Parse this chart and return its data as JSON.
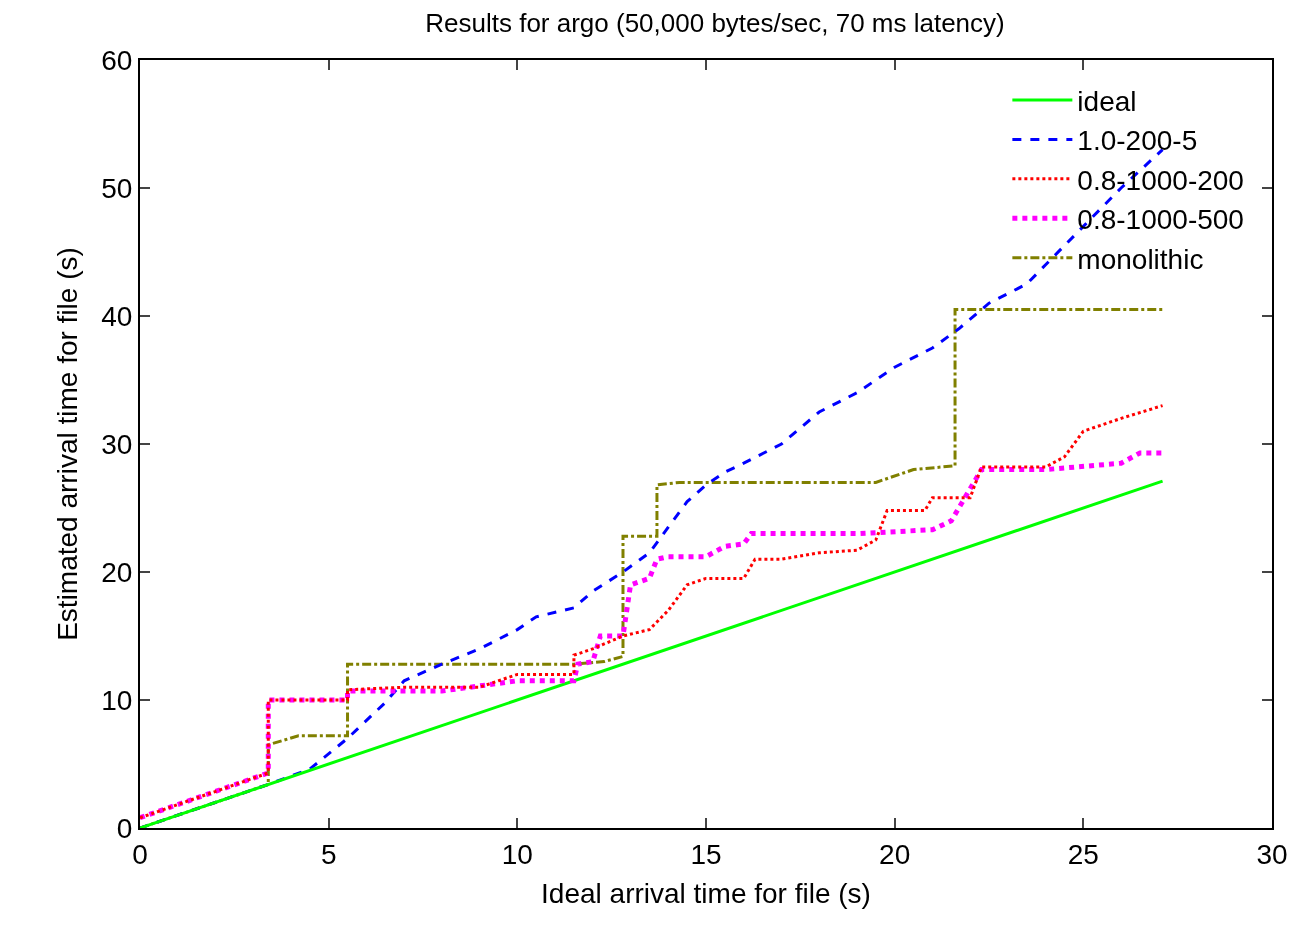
{
  "chart_data": {
    "type": "line",
    "title": "Results for argo (50,000 bytes/sec, 70 ms latency)",
    "xlabel": "Ideal arrival time for file (s)",
    "ylabel": "Estimated arrival time for file (s)",
    "xlim": [
      0,
      30
    ],
    "xticks": [
      0,
      5,
      10,
      15,
      20,
      25,
      30
    ],
    "ylim": [
      0,
      60
    ],
    "yticks": [
      0,
      10,
      20,
      30,
      40,
      50,
      60
    ],
    "legend": "top right",
    "series": [
      {
        "name": "ideal",
        "color": "#00ff00",
        "line_style": "solid",
        "x": [
          0,
          27.1
        ],
        "values": [
          0,
          27.1
        ]
      },
      {
        "name": "1.0-200-5",
        "color": "#0000ff",
        "line_style": "dashed",
        "x": [
          0,
          3.4,
          4.5,
          5.5,
          6.5,
          7,
          8,
          9,
          10,
          10.5,
          11.5,
          12,
          12.8,
          13.5,
          14,
          14.5,
          15,
          15.5,
          16,
          17,
          18,
          19,
          20,
          21,
          21.7,
          22.5,
          23.5,
          24,
          25,
          26,
          27.1
        ],
        "values": [
          0,
          3.4,
          4.6,
          7,
          9.8,
          11.5,
          12.8,
          14,
          15.5,
          16.5,
          17.2,
          18.5,
          20,
          21.5,
          23.5,
          25.5,
          26.8,
          27.8,
          28.5,
          30,
          32.5,
          34,
          36,
          37.5,
          39,
          41,
          42.5,
          44,
          47,
          50,
          53
        ]
      },
      {
        "name": "0.8-1000-200",
        "color": "#ff0000",
        "line_style": "dotted",
        "x": [
          0,
          3.4,
          3.4,
          5.5,
          5.5,
          7,
          9,
          10,
          11.5,
          11.5,
          12,
          12.8,
          13.5,
          14,
          14.5,
          15,
          16,
          16.3,
          17,
          18,
          19,
          19.5,
          19.8,
          20.8,
          21,
          22,
          22.3,
          24,
          24.5,
          25,
          26,
          27.1
        ],
        "values": [
          0.8,
          4.3,
          10,
          10,
          10.8,
          11,
          11,
          12,
          12,
          13.5,
          14,
          15,
          15.5,
          17,
          19,
          19.5,
          19.5,
          21,
          21,
          21.5,
          21.7,
          22.5,
          24.8,
          24.8,
          25.8,
          25.8,
          28.2,
          28.2,
          29,
          31,
          32,
          33
        ]
      },
      {
        "name": "0.8-1000-500",
        "color": "#ff00ff",
        "line_style": "dotted",
        "x": [
          0,
          3.4,
          3.4,
          5.5,
          5.5,
          8,
          10,
          11.5,
          11.6,
          12,
          12.2,
          12.8,
          13,
          13.5,
          13.7,
          14,
          15,
          15.5,
          16,
          16.2,
          19,
          21,
          21.5,
          22,
          22.3,
          24,
          26,
          26.5,
          27.1
        ],
        "values": [
          0.8,
          4.3,
          10,
          10,
          10.7,
          10.7,
          11.5,
          11.5,
          12.8,
          13,
          15,
          15,
          19,
          19.5,
          21,
          21.2,
          21.2,
          22,
          22.2,
          23,
          23,
          23.3,
          24,
          26.5,
          28,
          28,
          28.5,
          29.3,
          29.3
        ]
      },
      {
        "name": "monolithic",
        "color": "#808000",
        "line_style": "dashdot",
        "x": [
          0,
          3.4,
          3.4,
          4.2,
          5.5,
          5.5,
          11.5,
          12.3,
          12.8,
          12.8,
          13.7,
          13.7,
          14.3,
          19.5,
          20.5,
          21.6,
          21.6,
          27.1
        ],
        "values": [
          0,
          3.4,
          6.5,
          7.2,
          7.2,
          12.8,
          12.8,
          13,
          13.4,
          22.8,
          22.8,
          26.8,
          27,
          27,
          28,
          28.3,
          40.5,
          40.5
        ]
      }
    ]
  }
}
